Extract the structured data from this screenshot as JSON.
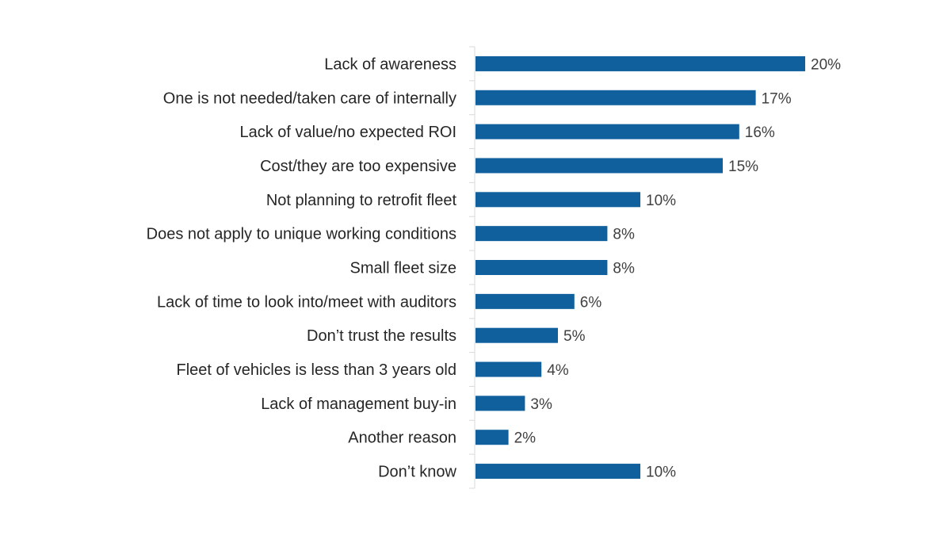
{
  "chart_data": {
    "type": "bar",
    "orientation": "horizontal",
    "title": "",
    "xlabel": "",
    "ylabel": "",
    "xlim": [
      0,
      20
    ],
    "grid": false,
    "bar_color": "#10609E",
    "categories": [
      "Lack of awareness",
      "One is not needed/taken care of internally",
      "Lack of value/no expected ROI",
      "Cost/they are too expensive",
      "Not planning to retrofit fleet",
      "Does not apply to unique working conditions",
      "Small fleet size",
      "Lack of time to look into/meet with auditors",
      "Don’t trust the results",
      "Fleet of vehicles is less than 3 years old",
      "Lack of management buy-in",
      "Another reason",
      "Don’t know"
    ],
    "values": [
      20,
      17,
      16,
      15,
      10,
      8,
      8,
      6,
      5,
      4,
      3,
      2,
      10
    ],
    "data_labels": [
      "20%",
      "17%",
      "16%",
      "15%",
      "10%",
      "8%",
      "8%",
      "6%",
      "5%",
      "4%",
      "3%",
      "2%",
      "10%"
    ]
  }
}
